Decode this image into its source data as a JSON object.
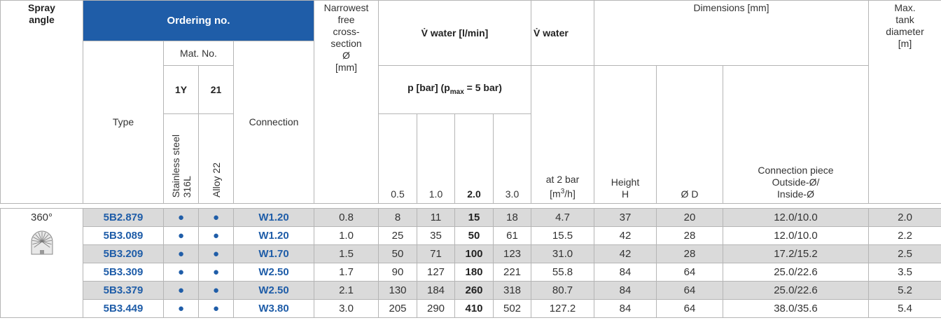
{
  "header": {
    "spray_angle": "Spray\nangle",
    "ordering_no": "Ordering no.",
    "mat_no": "Mat. No.",
    "type": "Type",
    "mat_1y": "1Y",
    "mat_21": "21",
    "stainless": "Stainless steel\n316L",
    "alloy": "Alloy 22",
    "connection": "Connection",
    "narrowest": "Narrowest\nfree\ncross-\nsection\nØ\n[mm]",
    "flow": "V̇ water [l/min]",
    "pressure": [
      "p [bar] (p",
      "max",
      " = 5 bar)"
    ],
    "pressures": [
      "0.5",
      "1.0",
      "2.0",
      "3.0"
    ],
    "flow2": "V̇ water",
    "at2bar": [
      "at 2 bar\n[m",
      "3",
      "/h]"
    ],
    "dimensions": "Dimensions [mm]",
    "height": "Height\nH",
    "diameter": "Ø D",
    "piece": "Connection piece\nOutside-Ø/\nInside-Ø",
    "tank": "Max.\ntank\ndiameter\n[m]"
  },
  "spray_angle": "360°",
  "rows": [
    {
      "type": "5B2.879",
      "m1y": "●",
      "m21": "●",
      "connection": "W1.20",
      "narrowest": "0.8",
      "flow": [
        "8",
        "11",
        "15",
        "18"
      ],
      "at2bar": "4.7",
      "height": "37",
      "d": "20",
      "piece": "12.0/10.0",
      "tank": "2.0"
    },
    {
      "type": "5B3.089",
      "m1y": "●",
      "m21": "●",
      "connection": "W1.20",
      "narrowest": "1.0",
      "flow": [
        "25",
        "35",
        "50",
        "61"
      ],
      "at2bar": "15.5",
      "height": "42",
      "d": "28",
      "piece": "12.0/10.0",
      "tank": "2.2"
    },
    {
      "type": "5B3.209",
      "m1y": "●",
      "m21": "●",
      "connection": "W1.70",
      "narrowest": "1.5",
      "flow": [
        "50",
        "71",
        "100",
        "123"
      ],
      "at2bar": "31.0",
      "height": "42",
      "d": "28",
      "piece": "17.2/15.2",
      "tank": "2.5"
    },
    {
      "type": "5B3.309",
      "m1y": "●",
      "m21": "●",
      "connection": "W2.50",
      "narrowest": "1.7",
      "flow": [
        "90",
        "127",
        "180",
        "221"
      ],
      "at2bar": "55.8",
      "height": "84",
      "d": "64",
      "piece": "25.0/22.6",
      "tank": "3.5"
    },
    {
      "type": "5B3.379",
      "m1y": "●",
      "m21": "●",
      "connection": "W2.50",
      "narrowest": "2.1",
      "flow": [
        "130",
        "184",
        "260",
        "318"
      ],
      "at2bar": "80.7",
      "height": "84",
      "d": "64",
      "piece": "25.0/22.6",
      "tank": "5.2"
    },
    {
      "type": "5B3.449",
      "m1y": "●",
      "m21": "●",
      "connection": "W3.80",
      "narrowest": "3.0",
      "flow": [
        "205",
        "290",
        "410",
        "502"
      ],
      "at2bar": "127.2",
      "height": "84",
      "d": "64",
      "piece": "38.0/35.6",
      "tank": "5.4"
    }
  ]
}
